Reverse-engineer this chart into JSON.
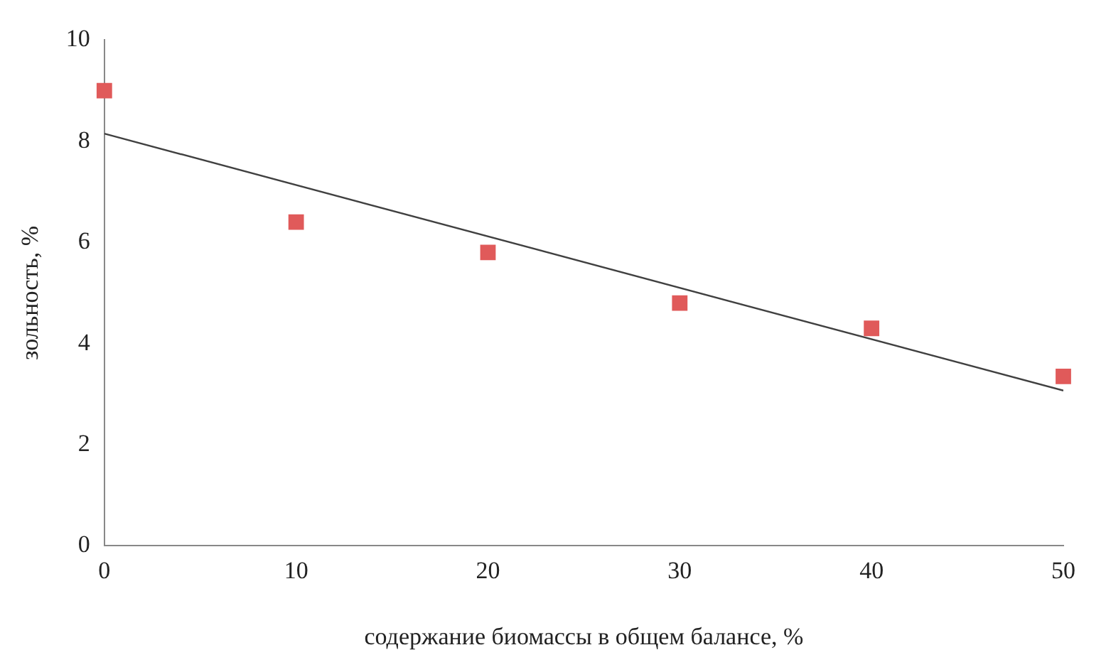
{
  "chart_data": {
    "type": "scatter",
    "xlabel": "содержание биомассы в общем балансе, %",
    "ylabel": "зольность, %",
    "xlim": [
      0,
      50
    ],
    "xticks": [
      0,
      10,
      20,
      30,
      40,
      50
    ],
    "ylim": [
      0,
      10
    ],
    "yticks": [
      0,
      2,
      4,
      6,
      8,
      10
    ],
    "grid": false,
    "legend": false,
    "series": [
      {
        "marker": "square",
        "color": "#e05a5a",
        "x": [
          0,
          10,
          20,
          30,
          40,
          50
        ],
        "values": [
          9.0,
          6.4,
          5.8,
          4.8,
          4.3,
          3.35
        ]
      },
      {
        "type": "line",
        "marker": "none",
        "color": "#404040",
        "x": [
          0,
          50
        ],
        "values": [
          8.15,
          3.07
        ]
      }
    ]
  }
}
